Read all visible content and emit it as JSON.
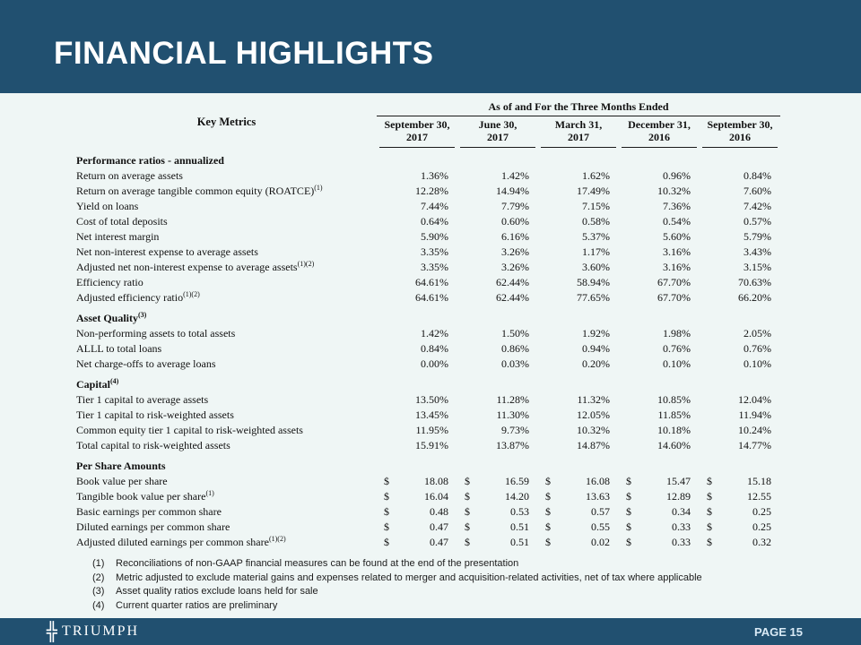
{
  "slide": {
    "title": "FINANCIAL HIGHLIGHTS",
    "brand": "TRIUMPH",
    "page_label": "PAGE 15",
    "colors": {
      "band_bg": "#215070",
      "content_bg": "#EFF6F5",
      "title_text": "#FFFFFF",
      "page_text": "#D8E9F5"
    }
  },
  "table": {
    "key_metrics_label": "Key Metrics",
    "span_header": "As of and For the Three Months Ended",
    "columns": [
      {
        "line1": "September 30,",
        "line2": "2017"
      },
      {
        "line1": "June 30,",
        "line2": "2017"
      },
      {
        "line1": "March 31,",
        "line2": "2017"
      },
      {
        "line1": "December 31,",
        "line2": "2016"
      },
      {
        "line1": "September 30,",
        "line2": "2016"
      }
    ],
    "sections": [
      {
        "header": "Performance ratios - annualized",
        "sup": "",
        "currency": false,
        "rows": [
          {
            "label": "Return on average assets",
            "sup": "",
            "values": [
              "1.36%",
              "1.42%",
              "1.62%",
              "0.96%",
              "0.84%"
            ]
          },
          {
            "label": "Return on average tangible common equity (ROATCE)",
            "sup": "(1)",
            "values": [
              "12.28%",
              "14.94%",
              "17.49%",
              "10.32%",
              "7.60%"
            ]
          },
          {
            "label": "Yield on loans",
            "sup": "",
            "values": [
              "7.44%",
              "7.79%",
              "7.15%",
              "7.36%",
              "7.42%"
            ]
          },
          {
            "label": "Cost of total deposits",
            "sup": "",
            "values": [
              "0.64%",
              "0.60%",
              "0.58%",
              "0.54%",
              "0.57%"
            ]
          },
          {
            "label": "Net interest margin",
            "sup": "",
            "values": [
              "5.90%",
              "6.16%",
              "5.37%",
              "5.60%",
              "5.79%"
            ]
          },
          {
            "label": "Net non-interest expense to average assets",
            "sup": "",
            "values": [
              "3.35%",
              "3.26%",
              "1.17%",
              "3.16%",
              "3.43%"
            ]
          },
          {
            "label": "Adjusted net non-interest expense to average assets",
            "sup": "(1)(2)",
            "values": [
              "3.35%",
              "3.26%",
              "3.60%",
              "3.16%",
              "3.15%"
            ]
          },
          {
            "label": "Efficiency ratio",
            "sup": "",
            "values": [
              "64.61%",
              "62.44%",
              "58.94%",
              "67.70%",
              "70.63%"
            ]
          },
          {
            "label": "Adjusted efficiency ratio",
            "sup": "(1)(2)",
            "values": [
              "64.61%",
              "62.44%",
              "77.65%",
              "67.70%",
              "66.20%"
            ]
          }
        ]
      },
      {
        "header": "Asset Quality",
        "sup": "(3)",
        "currency": false,
        "rows": [
          {
            "label": "Non-performing assets to total assets",
            "sup": "",
            "values": [
              "1.42%",
              "1.50%",
              "1.92%",
              "1.98%",
              "2.05%"
            ]
          },
          {
            "label": "ALLL to total loans",
            "sup": "",
            "values": [
              "0.84%",
              "0.86%",
              "0.94%",
              "0.76%",
              "0.76%"
            ]
          },
          {
            "label": "Net charge-offs to average loans",
            "sup": "",
            "values": [
              "0.00%",
              "0.03%",
              "0.20%",
              "0.10%",
              "0.10%"
            ]
          }
        ]
      },
      {
        "header": "Capital",
        "sup": "(4)",
        "currency": false,
        "rows": [
          {
            "label": "Tier 1 capital to average assets",
            "sup": "",
            "values": [
              "13.50%",
              "11.28%",
              "11.32%",
              "10.85%",
              "12.04%"
            ]
          },
          {
            "label": "Tier 1 capital to risk-weighted assets",
            "sup": "",
            "values": [
              "13.45%",
              "11.30%",
              "12.05%",
              "11.85%",
              "11.94%"
            ]
          },
          {
            "label": "Common equity tier 1 capital to risk-weighted assets",
            "sup": "",
            "values": [
              "11.95%",
              "9.73%",
              "10.32%",
              "10.18%",
              "10.24%"
            ]
          },
          {
            "label": "Total capital to risk-weighted assets",
            "sup": "",
            "values": [
              "15.91%",
              "13.87%",
              "14.87%",
              "14.60%",
              "14.77%"
            ]
          }
        ]
      },
      {
        "header": "Per Share Amounts",
        "sup": "",
        "currency": true,
        "rows": [
          {
            "label": "Book value per share",
            "sup": "",
            "values": [
              "18.08",
              "16.59",
              "16.08",
              "15.47",
              "15.18"
            ]
          },
          {
            "label": "Tangible book value per share",
            "sup": "(1)",
            "values": [
              "16.04",
              "14.20",
              "13.63",
              "12.89",
              "12.55"
            ]
          },
          {
            "label": "Basic earnings per common share",
            "sup": "",
            "values": [
              "0.48",
              "0.53",
              "0.57",
              "0.34",
              "0.25"
            ]
          },
          {
            "label": "Diluted earnings per common share",
            "sup": "",
            "values": [
              "0.47",
              "0.51",
              "0.55",
              "0.33",
              "0.25"
            ]
          },
          {
            "label": "Adjusted diluted earnings per common share",
            "sup": "(1)(2)",
            "values": [
              "0.47",
              "0.51",
              "0.02",
              "0.33",
              "0.32"
            ]
          }
        ]
      }
    ],
    "footnotes": [
      {
        "num": "(1)",
        "text": "Reconciliations of non-GAAP financial measures can be found at the end of the presentation"
      },
      {
        "num": "(2)",
        "text": "Metric adjusted to exclude material gains and expenses related to merger and acquisition-related activities, net of tax where applicable"
      },
      {
        "num": "(3)",
        "text": "Asset quality ratios exclude loans held for sale"
      },
      {
        "num": "(4)",
        "text": "Current quarter ratios are preliminary"
      }
    ],
    "currency_symbol": "$"
  }
}
